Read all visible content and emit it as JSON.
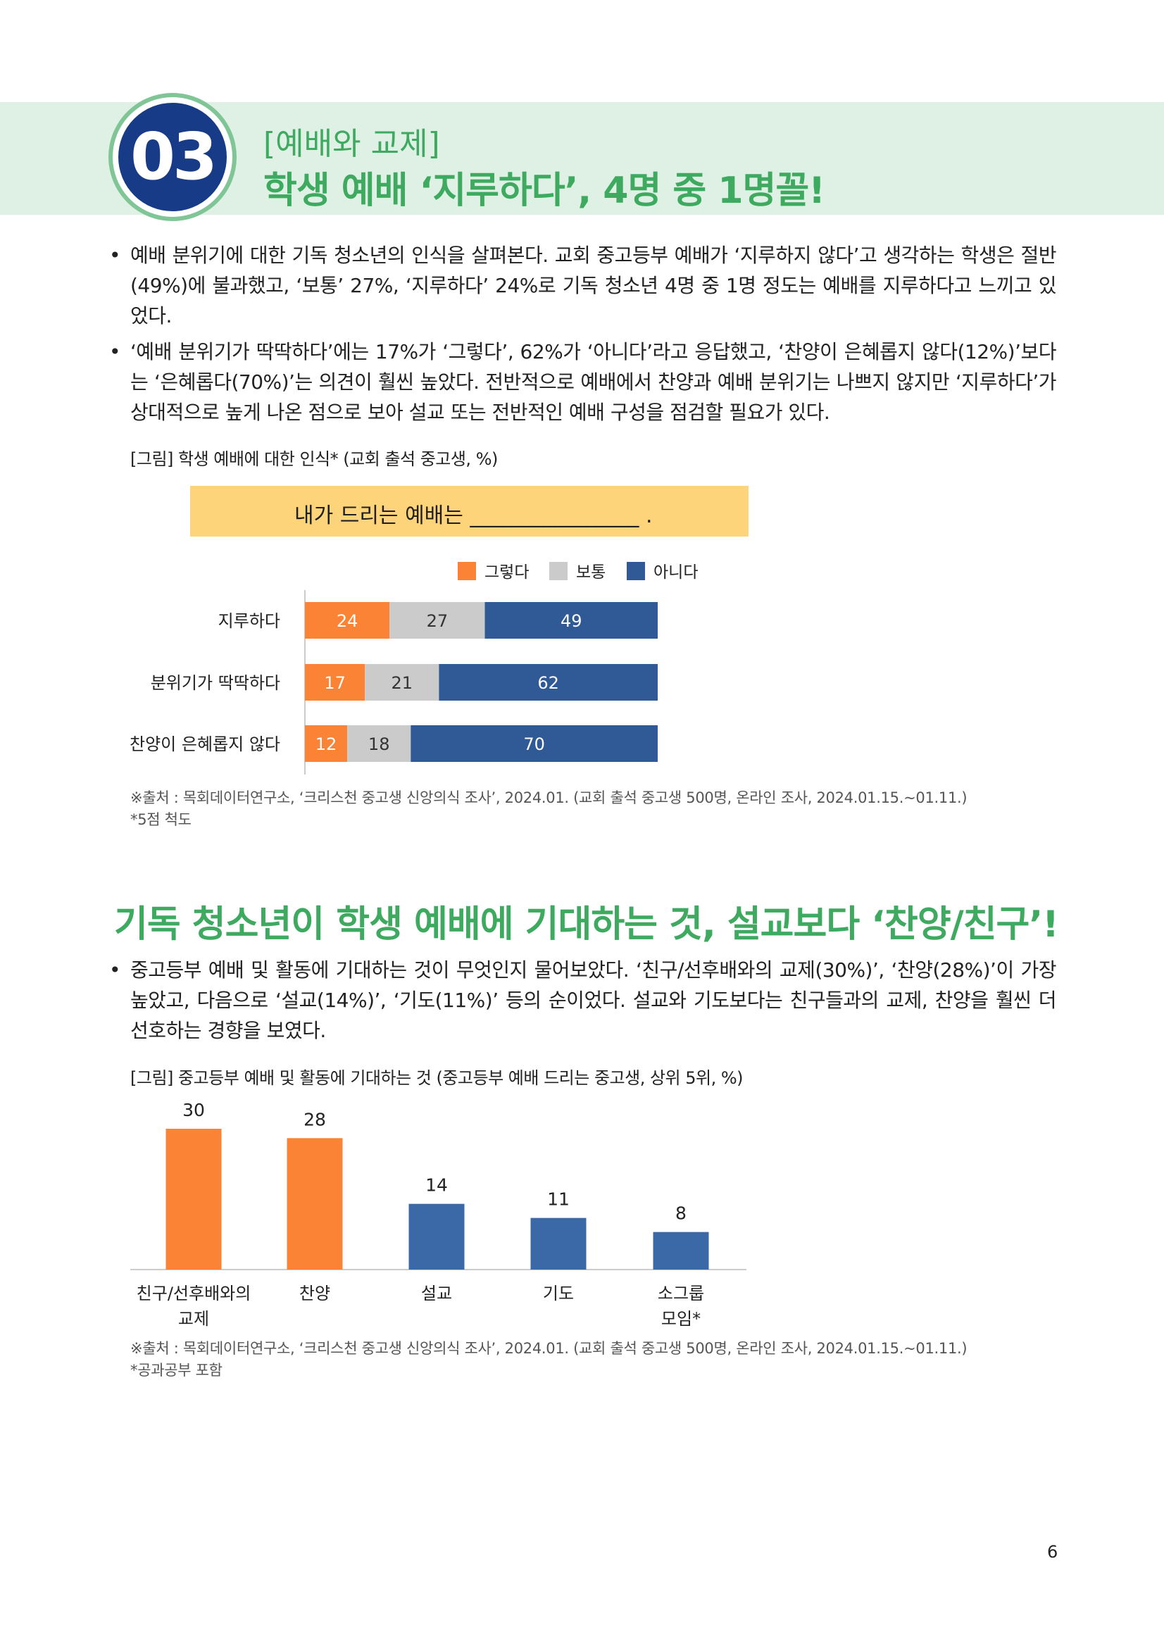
{
  "section": {
    "number": "03",
    "kicker": "[예배와 교제]",
    "title": "학생 예배 ‘지루하다’, 4명 중 1명꼴!"
  },
  "bullets1": [
    "예배 분위기에 대한 기독 청소년의 인식을 살펴본다. 교회 중고등부 예배가 ‘지루하지 않다’고 생각하는 학생은 절반(49%)에 불과했고, ‘보통’ 27%, ‘지루하다’ 24%로 기독 청소년 4명 중 1명 정도는 예배를 지루하다고 느끼고 있었다.",
    "‘예배 분위기가 딱딱하다’에는 17%가 ‘그렇다’, 62%가 ‘아니다’라고 응답했고, ‘찬양이 은혜롭지 않다(12%)’보다는 ‘은혜롭다(70%)’는 의견이 훨씬 높았다. 전반적으로 예배에서 찬양과 예배 분위기는 나쁘지 않지만 ‘지루하다’가 상대적으로 높게 나온 점으로 보아 설교 또는 전반적인 예배 구성을 점검할 필요가 있다."
  ],
  "figure1": {
    "caption": "[그림] 학생 예배에 대한 인식* (교회 출석 중고생, %)",
    "prompt": "내가 드리는 예배는 ________________ .",
    "source": "※출처 : 목회데이터연구소, ‘크리스천 중고생 신앙의식 조사’, 2024.01. (교회 출석 중고생 500명, 온라인 조사, 2024.01.15.~01.11.)",
    "note": "*5점 척도"
  },
  "section2": {
    "title": "기독 청소년이 학생 예배에 기대하는 것, 설교보다 ‘찬양/친구’!"
  },
  "bullets2": [
    "중고등부 예배 및 활동에 기대하는 것이 무엇인지 물어보았다. ‘친구/선후배와의 교제(30%)’, ‘찬양(28%)’이 가장 높았고, 다음으로 ‘설교(14%)’, ‘기도(11%)’ 등의 순이었다. 설교와 기도보다는 친구들과의 교제, 찬양을 훨씬 더 선호하는 경향을 보였다."
  ],
  "figure2": {
    "caption": "[그림] 중고등부 예배 및 활동에 기대하는 것 (중고등부 예배 드리는 중고생, 상위 5위, %)",
    "source": "※출처 : 목회데이터연구소, ‘크리스천 중고생 신앙의식 조사’, 2024.01. (교회 출석 중고생 500명, 온라인 조사, 2024.01.15.~01.11.)",
    "note": "*공과공부 포함"
  },
  "page_number": "6",
  "colors": {
    "green": "#3daa5f",
    "navy": "#173b86",
    "orange": "#fb8335",
    "gray": "#cbcbcb",
    "blue": "#2f5a95",
    "blue2": "#3b69a8"
  },
  "chart_data": [
    {
      "type": "bar",
      "orientation": "horizontal-stacked",
      "categories": [
        "지루하다",
        "분위기가 딱딱하다",
        "찬양이 은혜롭지 않다"
      ],
      "series": [
        {
          "name": "그렇다",
          "values": [
            24,
            17,
            12
          ],
          "color": "#fb8335"
        },
        {
          "name": "보통",
          "values": [
            27,
            21,
            18
          ],
          "color": "#cbcbcb"
        },
        {
          "name": "아니다",
          "values": [
            49,
            62,
            70
          ],
          "color": "#2f5a95"
        }
      ],
      "xlim": [
        0,
        100
      ],
      "legend": "top",
      "grid": false
    },
    {
      "type": "bar",
      "categories": [
        "친구/선후배와의\n교제",
        "찬양",
        "설교",
        "기도",
        "소그룹\n모임*"
      ],
      "values": [
        30,
        28,
        14,
        11,
        8
      ],
      "colors": [
        "#fb8335",
        "#fb8335",
        "#3b69a8",
        "#3b69a8",
        "#3b69a8"
      ],
      "ylim": [
        0,
        30
      ],
      "grid": false
    }
  ]
}
